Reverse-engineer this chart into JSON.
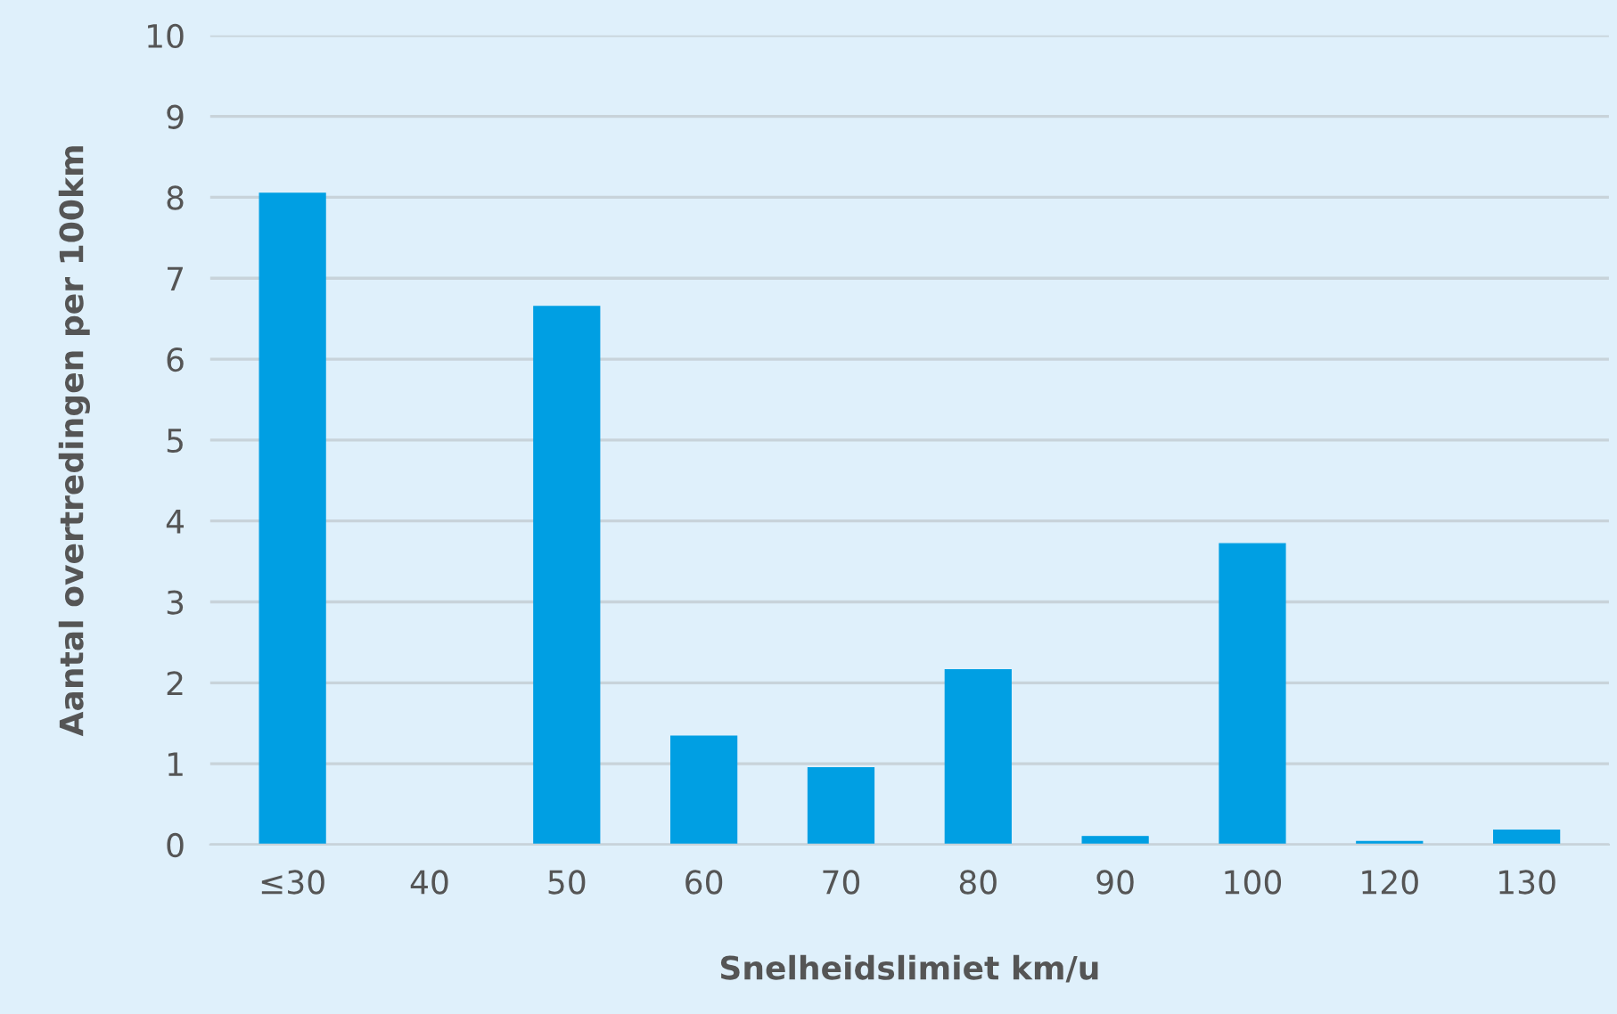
{
  "chart_data": {
    "type": "bar",
    "xlabel": "Snelheidslimiet km/u",
    "ylabel": "Aantal overtredingen per 100km",
    "categories": [
      "≤30",
      "40",
      "50",
      "60",
      "70",
      "80",
      "90",
      "100",
      "120",
      "130"
    ],
    "values": [
      8.05,
      0,
      6.65,
      1.34,
      0.95,
      2.16,
      0.1,
      3.72,
      0.04,
      0.18
    ],
    "color": "#009fe3",
    "ylim": [
      0,
      10
    ],
    "yticks": [
      0,
      1,
      2,
      3,
      4,
      5,
      6,
      7,
      8,
      9,
      10
    ],
    "grid": "y",
    "legend": false
  }
}
